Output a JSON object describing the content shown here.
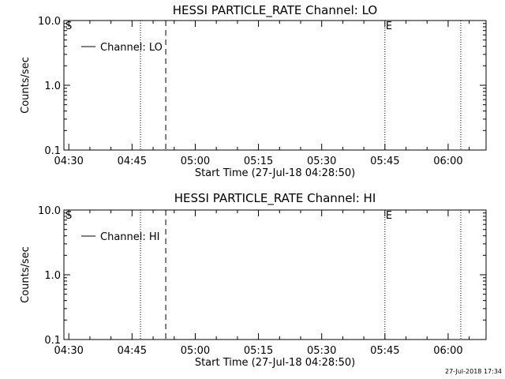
{
  "footer": {
    "timestamp": "27-Jul-2018 17:34"
  },
  "chart_data": [
    {
      "type": "line",
      "title": "HESSI PARTICLE_RATE Channel: LO",
      "xlabel": "Start Time (27-Jul-18 04:28:50)",
      "ylabel": "Counts/sec",
      "yscale": "log",
      "ylim": [
        0.1,
        10.0
      ],
      "xlim": [
        "04:28:50",
        "06:09:00"
      ],
      "x_ticks": [
        "04:30",
        "04:45",
        "05:00",
        "05:15",
        "05:30",
        "05:45",
        "06:00"
      ],
      "y_ticks": [
        "0.1",
        "1.0",
        "10.0"
      ],
      "legend": {
        "entries": [
          "Channel: LO"
        ],
        "placement": "top-left"
      },
      "series": [
        {
          "name": "Channel: LO",
          "x": [],
          "y": []
        }
      ],
      "markers": [
        {
          "time": "04:47",
          "style": "dotted",
          "label": "S"
        },
        {
          "time": "04:53",
          "style": "dashed",
          "label": ""
        },
        {
          "time": "05:45",
          "style": "dotted",
          "label": "E"
        },
        {
          "time": "06:03",
          "style": "dotted",
          "label": ""
        }
      ]
    },
    {
      "type": "line",
      "title": "HESSI PARTICLE_RATE Channel: HI",
      "xlabel": "Start Time (27-Jul-18 04:28:50)",
      "ylabel": "Counts/sec",
      "yscale": "log",
      "ylim": [
        0.1,
        10.0
      ],
      "xlim": [
        "04:28:50",
        "06:09:00"
      ],
      "x_ticks": [
        "04:30",
        "04:45",
        "05:00",
        "05:15",
        "05:30",
        "05:45",
        "06:00"
      ],
      "y_ticks": [
        "0.1",
        "1.0",
        "10.0"
      ],
      "legend": {
        "entries": [
          "Channel: HI"
        ],
        "placement": "top-left"
      },
      "series": [
        {
          "name": "Channel: HI",
          "x": [],
          "y": []
        }
      ],
      "markers": [
        {
          "time": "04:47",
          "style": "dotted",
          "label": "S"
        },
        {
          "time": "04:53",
          "style": "dashed",
          "label": ""
        },
        {
          "time": "05:45",
          "style": "dotted",
          "label": "E"
        },
        {
          "time": "06:03",
          "style": "dotted",
          "label": ""
        }
      ]
    }
  ]
}
